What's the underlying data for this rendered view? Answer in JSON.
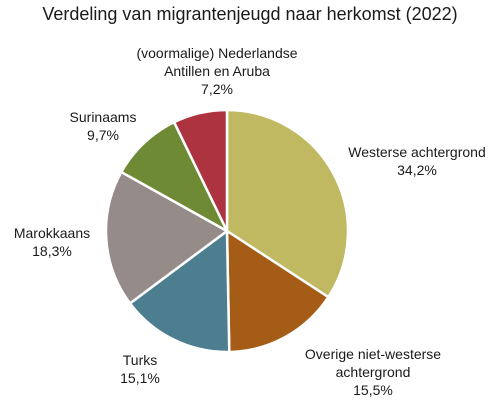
{
  "chart_data": {
    "type": "pie",
    "title": "Verdeling van migrantenjeugd naar herkomst (2022)",
    "slices": [
      {
        "name_lines": [
          "Westerse achtergrond"
        ],
        "value": 34.2,
        "value_label": "34,2%",
        "color": "#c0b962"
      },
      {
        "name_lines": [
          "Overige niet-westerse",
          "achtergrond"
        ],
        "value": 15.5,
        "value_label": "15,5%",
        "color": "#a55c17"
      },
      {
        "name_lines": [
          "Turks"
        ],
        "value": 15.1,
        "value_label": "15,1%",
        "color": "#4d7e8f"
      },
      {
        "name_lines": [
          "Marokkaans"
        ],
        "value": 18.3,
        "value_label": "18,3%",
        "color": "#958c89"
      },
      {
        "name_lines": [
          "Surinaams"
        ],
        "value": 9.7,
        "value_label": "9,7%",
        "color": "#6e8a34"
      },
      {
        "name_lines": [
          "(voormalige) Nederlandse",
          "Antillen en Aruba"
        ],
        "value": 7.2,
        "value_label": "7,2%",
        "color": "#ad3340"
      }
    ]
  }
}
